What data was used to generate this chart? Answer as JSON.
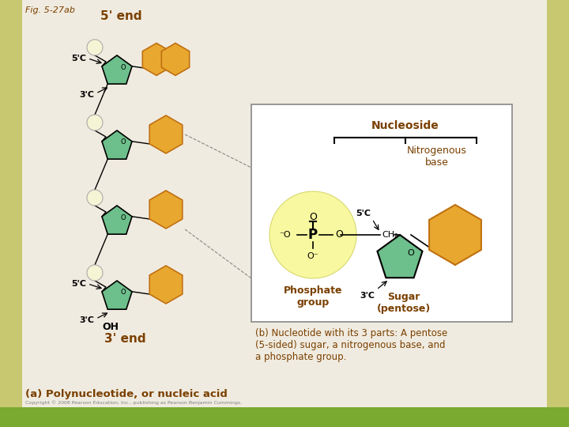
{
  "bg_color": "#f0ebe0",
  "sidebar_color": "#c8c870",
  "bottom_bar_color": "#7aaa30",
  "main_bg": "#f0ebe0",
  "fig_label": "Fig. 5-27ab",
  "title_5end": "5' end",
  "title_3end": "3' end",
  "label_a": "(a) Polynucleotide, or nucleic acid",
  "label_b": "(b) Nucleotide with its 3 parts: A pentose\n(5-sided) sugar, a nitrogenous base, and\na phosphate group.",
  "nucleoside_label": "Nucleoside",
  "nitrogenous_label": "Nitrogenous\nbase",
  "phosphate_label": "Phosphate\ngroup",
  "sugar_label": "Sugar\n(pentose)",
  "sugar_color": "#6dbf8b",
  "base_color": "#e8a830",
  "base_edge_color": "#c07010",
  "phosphate_fill": "#f8f8b0",
  "text_color": "#7a4000",
  "phos_circle_color": "#f8f8a0",
  "inset_box_edge": "#888888",
  "copyright": "Copyright © 2008 Pearson Education, Inc., publishing as Pearson Benjamin Cummings."
}
